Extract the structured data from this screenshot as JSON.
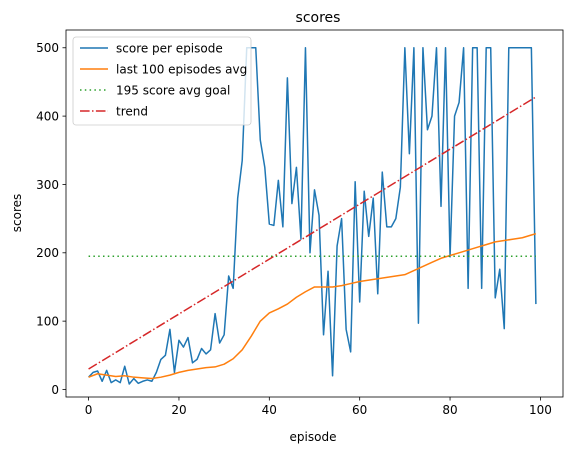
{
  "chart_data": {
    "type": "line",
    "title": "scores",
    "xlabel": "episode",
    "ylabel": "scores",
    "xlim": [
      -5,
      105
    ],
    "ylim": [
      -11,
      526
    ],
    "x_ticks": [
      "0",
      "20",
      "40",
      "60",
      "80",
      "100"
    ],
    "x_tick_values": [
      0,
      20,
      40,
      60,
      80,
      100
    ],
    "y_ticks": [
      "0",
      "100",
      "200",
      "300",
      "400",
      "500"
    ],
    "y_tick_values": [
      0,
      100,
      200,
      300,
      400,
      500
    ],
    "grid": false,
    "legend_position": "top-left",
    "legend": [
      {
        "label": "score per episode",
        "color": "#1f77b4",
        "style": "solid"
      },
      {
        "label": "last 100 episodes avg",
        "color": "#ff7f0e",
        "style": "solid"
      },
      {
        "label": "195 score avg goal",
        "color": "#2ca02c",
        "style": "dotted"
      },
      {
        "label": "trend",
        "color": "#d62728",
        "style": "dashdot"
      }
    ],
    "series": [
      {
        "name": "score per episode",
        "color": "#1f77b4",
        "style": "solid",
        "x": [
          0,
          1,
          2,
          3,
          4,
          5,
          6,
          7,
          8,
          9,
          10,
          11,
          12,
          13,
          14,
          15,
          16,
          17,
          18,
          19,
          20,
          21,
          22,
          23,
          24,
          25,
          26,
          27,
          28,
          29,
          30,
          31,
          32,
          33,
          34,
          35,
          36,
          37,
          38,
          39,
          40,
          41,
          42,
          43,
          44,
          45,
          46,
          47,
          48,
          49,
          50,
          51,
          52,
          53,
          54,
          55,
          56,
          57,
          58,
          59,
          60,
          61,
          62,
          63,
          64,
          65,
          66,
          67,
          68,
          69,
          70,
          71,
          72,
          73,
          74,
          75,
          76,
          77,
          78,
          79,
          80,
          81,
          82,
          83,
          84,
          85,
          86,
          87,
          88,
          89,
          90,
          91,
          92,
          93,
          94,
          95,
          96,
          97,
          98,
          99
        ],
        "y": [
          18,
          25,
          27,
          12,
          28,
          10,
          14,
          10,
          34,
          8,
          16,
          9,
          12,
          14,
          12,
          25,
          44,
          50,
          88,
          25,
          72,
          62,
          76,
          39,
          44,
          60,
          52,
          58,
          111,
          68,
          80,
          166,
          148,
          280,
          335,
          500,
          500,
          500,
          365,
          325,
          242,
          240,
          306,
          238,
          456,
          272,
          325,
          220,
          500,
          200,
          292,
          255,
          80,
          173,
          20,
          210,
          250,
          88,
          55,
          304,
          128,
          290,
          224,
          280,
          140,
          318,
          238,
          238,
          250,
          296,
          500,
          345,
          500,
          97,
          500,
          380,
          400,
          500,
          268,
          500,
          194,
          400,
          420,
          500,
          148,
          500,
          500,
          148,
          500,
          500,
          134,
          176,
          89,
          500,
          500,
          500,
          500,
          500,
          500,
          125
        ]
      },
      {
        "name": "last 100 episodes avg",
        "color": "#ff7f0e",
        "style": "solid",
        "x": [
          0,
          2,
          4,
          6,
          8,
          10,
          12,
          14,
          16,
          18,
          20,
          22,
          24,
          26,
          28,
          30,
          32,
          34,
          36,
          38,
          40,
          42,
          44,
          46,
          48,
          50,
          52,
          54,
          56,
          58,
          60,
          62,
          64,
          66,
          68,
          70,
          72,
          74,
          76,
          78,
          80,
          82,
          84,
          86,
          88,
          90,
          92,
          94,
          96,
          98,
          99
        ],
        "y": [
          18,
          23,
          21,
          19,
          20,
          18,
          17,
          16,
          18,
          21,
          25,
          28,
          30,
          32,
          33,
          37,
          45,
          58,
          78,
          100,
          112,
          118,
          125,
          135,
          143,
          150,
          150,
          150,
          152,
          155,
          158,
          160,
          162,
          164,
          166,
          168,
          174,
          180,
          186,
          192,
          196,
          200,
          204,
          208,
          212,
          216,
          218,
          220,
          222,
          226,
          228
        ]
      },
      {
        "name": "195 score avg goal",
        "color": "#2ca02c",
        "style": "dotted",
        "x": [
          0,
          99
        ],
        "y": [
          195,
          195
        ]
      },
      {
        "name": "trend",
        "color": "#d62728",
        "style": "dashdot",
        "x": [
          0,
          99
        ],
        "y": [
          30,
          428
        ]
      }
    ]
  }
}
